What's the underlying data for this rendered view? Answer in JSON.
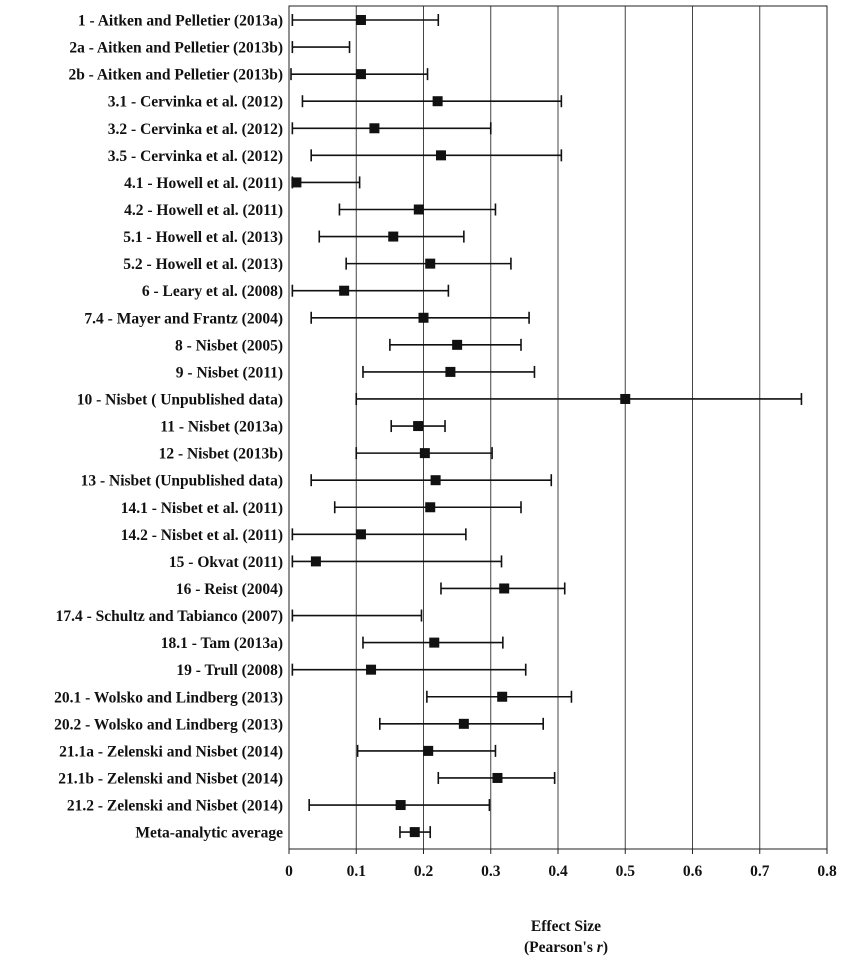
{
  "chart_data": {
    "type": "forest",
    "xlabel": "Effect Size",
    "xlabel_sub_prefix": "(Pearson's ",
    "xlabel_sub_var": "r",
    "xlabel_sub_suffix": ")",
    "xlim": [
      0,
      0.8
    ],
    "xticks": [
      "0",
      "0.1",
      "0.2",
      "0.3",
      "0.4",
      "0.5",
      "0.6",
      "0.7",
      "0.8"
    ],
    "grid": true,
    "studies": [
      {
        "label": "1 - Aitken and Pelletier (2013a)",
        "r": 0.107,
        "lo": 0.005,
        "hi": 0.222
      },
      {
        "label": "2a - Aitken and Pelletier (2013b)",
        "r": null,
        "lo": 0.005,
        "hi": 0.09
      },
      {
        "label": "2b - Aitken and Pelletier (2013b)",
        "r": 0.107,
        "lo": 0.003,
        "hi": 0.206
      },
      {
        "label": "3.1 - Cervinka et al. (2012)",
        "r": 0.221,
        "lo": 0.02,
        "hi": 0.405
      },
      {
        "label": "3.2 - Cervinka et al. (2012)",
        "r": 0.127,
        "lo": 0.005,
        "hi": 0.3
      },
      {
        "label": "3.5 - Cervinka et al. (2012)",
        "r": 0.226,
        "lo": 0.033,
        "hi": 0.405
      },
      {
        "label": "4.1 - Howell et al. (2011)",
        "r": 0.011,
        "lo": 0.005,
        "hi": 0.105
      },
      {
        "label": "4.2 - Howell et al. (2011)",
        "r": 0.193,
        "lo": 0.075,
        "hi": 0.307
      },
      {
        "label": "5.1 - Howell et al. (2013)",
        "r": 0.155,
        "lo": 0.045,
        "hi": 0.26
      },
      {
        "label": "5.2 - Howell et al. (2013)",
        "r": 0.21,
        "lo": 0.085,
        "hi": 0.33
      },
      {
        "label": "6 - Leary et al. (2008)",
        "r": 0.082,
        "lo": 0.005,
        "hi": 0.237
      },
      {
        "label": "7.4 - Mayer and Frantz (2004)",
        "r": 0.2,
        "lo": 0.033,
        "hi": 0.357
      },
      {
        "label": "8 - Nisbet (2005)",
        "r": 0.25,
        "lo": 0.15,
        "hi": 0.345
      },
      {
        "label": "9 - Nisbet (2011)",
        "r": 0.24,
        "lo": 0.11,
        "hi": 0.365
      },
      {
        "label": "10 - Nisbet ( Unpublished data)",
        "r": 0.5,
        "lo": 0.1,
        "hi": 0.762
      },
      {
        "label": "11 - Nisbet (2013a)",
        "r": 0.192,
        "lo": 0.152,
        "hi": 0.232
      },
      {
        "label": "12 - Nisbet (2013b)",
        "r": 0.202,
        "lo": 0.1,
        "hi": 0.302
      },
      {
        "label": "13 - Nisbet (Unpublished data)",
        "r": 0.218,
        "lo": 0.033,
        "hi": 0.39
      },
      {
        "label": "14.1 - Nisbet et al. (2011)",
        "r": 0.21,
        "lo": 0.068,
        "hi": 0.345
      },
      {
        "label": "14.2 - Nisbet et al. (2011)",
        "r": 0.107,
        "lo": 0.005,
        "hi": 0.263
      },
      {
        "label": "15 - Okvat (2011)",
        "r": 0.04,
        "lo": 0.005,
        "hi": 0.316
      },
      {
        "label": "16 - Reist (2004)",
        "r": 0.32,
        "lo": 0.226,
        "hi": 0.41
      },
      {
        "label": "17.4 - Schultz and Tabianco (2007)",
        "r": null,
        "lo": 0.005,
        "hi": 0.197
      },
      {
        "label": "18.1 - Tam (2013a)",
        "r": 0.216,
        "lo": 0.11,
        "hi": 0.318
      },
      {
        "label": "19 - Trull (2008)",
        "r": 0.122,
        "lo": 0.005,
        "hi": 0.352
      },
      {
        "label": "20.1 - Wolsko and Lindberg (2013)",
        "r": 0.317,
        "lo": 0.205,
        "hi": 0.42
      },
      {
        "label": "20.2 - Wolsko and Lindberg (2013)",
        "r": 0.26,
        "lo": 0.135,
        "hi": 0.378
      },
      {
        "label": "21.1a - Zelenski and Nisbet (2014)",
        "r": 0.207,
        "lo": 0.102,
        "hi": 0.307
      },
      {
        "label": "21.1b - Zelenski and Nisbet (2014)",
        "r": 0.31,
        "lo": 0.222,
        "hi": 0.395
      },
      {
        "label": "21.2 - Zelenski and Nisbet (2014)",
        "r": 0.166,
        "lo": 0.03,
        "hi": 0.298
      },
      {
        "label": "Meta-analytic average",
        "r": 0.187,
        "lo": 0.165,
        "hi": 0.21
      }
    ]
  }
}
